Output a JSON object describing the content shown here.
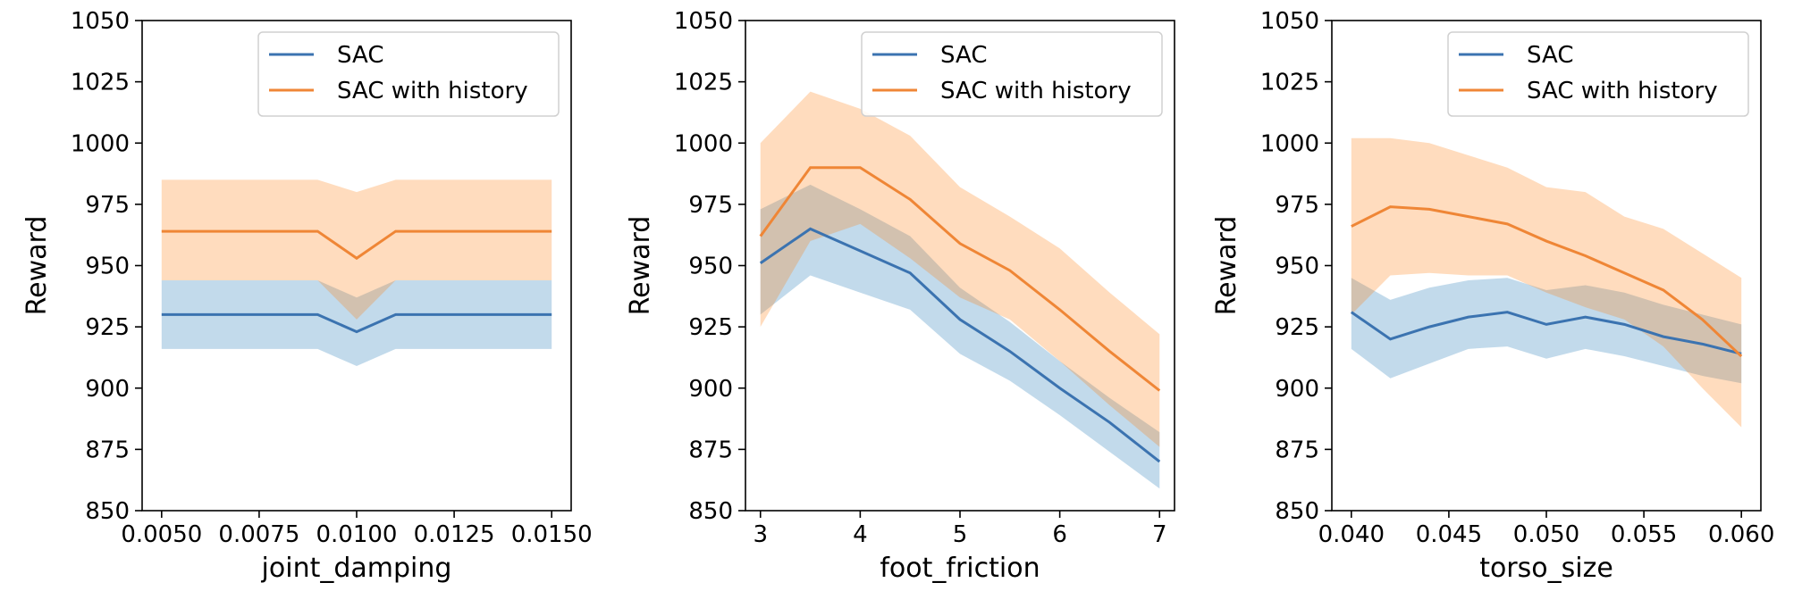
{
  "colors": {
    "sac": "#3b73b0",
    "sac_band": "#aac6e0",
    "sac_history": "#ef8636",
    "sac_history_band": "#f8c7a0",
    "overlap_band": "#cdbcad"
  },
  "chart_data": [
    {
      "type": "line",
      "xlabel": "joint_damping",
      "ylabel": "Reward",
      "ylim": [
        850,
        1050
      ],
      "yticks": [
        "850",
        "875",
        "900",
        "925",
        "950",
        "975",
        "1000",
        "1025",
        "1050"
      ],
      "xlim": [
        0.0045,
        0.0155
      ],
      "xticks": [
        {
          "value": 0.005,
          "label": "0.0050"
        },
        {
          "value": 0.0075,
          "label": "0.0075"
        },
        {
          "value": 0.01,
          "label": "0.0100"
        },
        {
          "value": 0.0125,
          "label": "0.0125"
        },
        {
          "value": 0.015,
          "label": "0.0150"
        }
      ],
      "x": [
        0.005,
        0.009,
        0.01,
        0.011,
        0.015
      ],
      "legend": "upper-right",
      "series": [
        {
          "name": "SAC",
          "values": [
            930,
            930,
            923,
            930,
            930
          ],
          "lower": [
            916,
            916,
            909,
            916,
            916
          ],
          "upper": [
            944,
            944,
            937,
            944,
            944
          ]
        },
        {
          "name": "SAC with history",
          "values": [
            964,
            964,
            953,
            964,
            964
          ],
          "lower": [
            944,
            944,
            928,
            944,
            944
          ],
          "upper": [
            985,
            985,
            980,
            985,
            985
          ]
        }
      ]
    },
    {
      "type": "line",
      "xlabel": "foot_friction",
      "ylabel": "Reward",
      "ylim": [
        850,
        1050
      ],
      "yticks": [
        "850",
        "875",
        "900",
        "925",
        "950",
        "975",
        "1000",
        "1025",
        "1050"
      ],
      "xlim": [
        2.85,
        7.15
      ],
      "xticks": [
        {
          "value": 3,
          "label": "3"
        },
        {
          "value": 4,
          "label": "4"
        },
        {
          "value": 5,
          "label": "5"
        },
        {
          "value": 6,
          "label": "6"
        },
        {
          "value": 7,
          "label": "7"
        }
      ],
      "x": [
        3,
        3.5,
        4,
        4.5,
        5,
        5.5,
        6,
        6.5,
        7
      ],
      "legend": "upper-right",
      "series": [
        {
          "name": "SAC",
          "values": [
            951,
            965,
            956,
            947,
            928,
            915,
            900,
            886,
            870
          ],
          "lower": [
            930,
            946,
            939,
            932,
            914,
            903,
            889,
            874,
            859
          ],
          "upper": [
            973,
            983,
            973,
            962,
            941,
            927,
            911,
            896,
            882
          ]
        },
        {
          "name": "SAC with history",
          "values": [
            962,
            990,
            990,
            977,
            959,
            948,
            932,
            915,
            899
          ],
          "lower": [
            925,
            960,
            967,
            953,
            937,
            928,
            911,
            893,
            876
          ],
          "upper": [
            1000,
            1021,
            1014,
            1003,
            982,
            970,
            957,
            939,
            922
          ]
        }
      ]
    },
    {
      "type": "line",
      "xlabel": "torso_size",
      "ylabel": "Reward",
      "ylim": [
        850,
        1050
      ],
      "yticks": [
        "850",
        "875",
        "900",
        "925",
        "950",
        "975",
        "1000",
        "1025",
        "1050"
      ],
      "xlim": [
        0.039,
        0.061
      ],
      "xticks": [
        {
          "value": 0.04,
          "label": "0.040"
        },
        {
          "value": 0.045,
          "label": "0.045"
        },
        {
          "value": 0.05,
          "label": "0.050"
        },
        {
          "value": 0.055,
          "label": "0.055"
        },
        {
          "value": 0.06,
          "label": "0.060"
        }
      ],
      "x": [
        0.04,
        0.042,
        0.044,
        0.046,
        0.048,
        0.05,
        0.052,
        0.054,
        0.056,
        0.058,
        0.06
      ],
      "legend": "upper-right",
      "series": [
        {
          "name": "SAC",
          "values": [
            931,
            920,
            925,
            929,
            931,
            926,
            929,
            926,
            921,
            918,
            914
          ],
          "lower": [
            916,
            904,
            910,
            916,
            917,
            912,
            916,
            913,
            909,
            905,
            902
          ],
          "upper": [
            945,
            936,
            941,
            944,
            945,
            940,
            942,
            939,
            934,
            930,
            926
          ]
        },
        {
          "name": "SAC with history",
          "values": [
            966,
            974,
            973,
            970,
            967,
            960,
            954,
            947,
            940,
            928,
            913
          ],
          "lower": [
            930,
            946,
            947,
            946,
            946,
            939,
            933,
            928,
            917,
            900,
            884
          ],
          "upper": [
            1002,
            1002,
            1000,
            995,
            990,
            982,
            980,
            970,
            965,
            955,
            945
          ]
        }
      ]
    }
  ]
}
